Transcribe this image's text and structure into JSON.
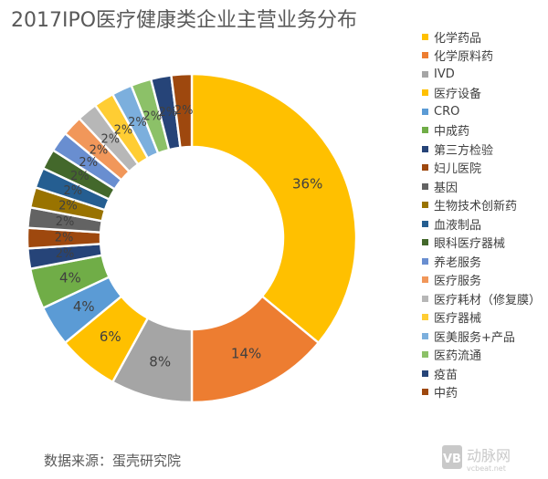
{
  "title": "2017IPO医疗健康类企业主营业务分布",
  "source": "数据来源：蛋壳研究院",
  "watermark": "动脉网 vcbeat.net",
  "chart_data": {
    "type": "pie",
    "variant": "doughnut",
    "title": "2017IPO医疗健康类企业主营业务分布",
    "legend_position": "right",
    "categories": [
      "化学药品",
      "化学原料药",
      "IVD",
      "医疗设备",
      "CRO",
      "中成药",
      "第三方检验",
      "妇儿医院",
      "基因",
      "生物技术创新药",
      "血液制品",
      "眼科医疗器械",
      "养老服务",
      "医疗服务",
      "医疗耗材（修复膜）",
      "医疗器械",
      "医美服务+产品",
      "医药流通",
      "疫苗",
      "中药"
    ],
    "values": [
      36,
      14,
      8,
      6,
      4,
      4,
      2,
      2,
      2,
      2,
      2,
      2,
      2,
      2,
      2,
      2,
      2,
      2,
      2,
      2
    ],
    "labels": [
      "36%",
      "14%",
      "8%",
      "6%",
      "4%",
      "4%",
      "2%",
      "2%",
      "2%",
      "2%",
      "2%",
      "2%",
      "2%",
      "2%",
      "2%",
      "2%",
      "2%",
      "2%",
      "2%",
      "2%"
    ],
    "colors": [
      "#FFC000",
      "#ED7D31",
      "#A5A5A5",
      "#FFC000",
      "#5B9BD5",
      "#70AD47",
      "#264478",
      "#9E480E",
      "#636363",
      "#997300",
      "#255E91",
      "#43682B",
      "#698ED0",
      "#F1975A",
      "#B7B7B7",
      "#FFCD33",
      "#7CAFDD",
      "#8CC168",
      "#264478",
      "#9E480E"
    ]
  }
}
